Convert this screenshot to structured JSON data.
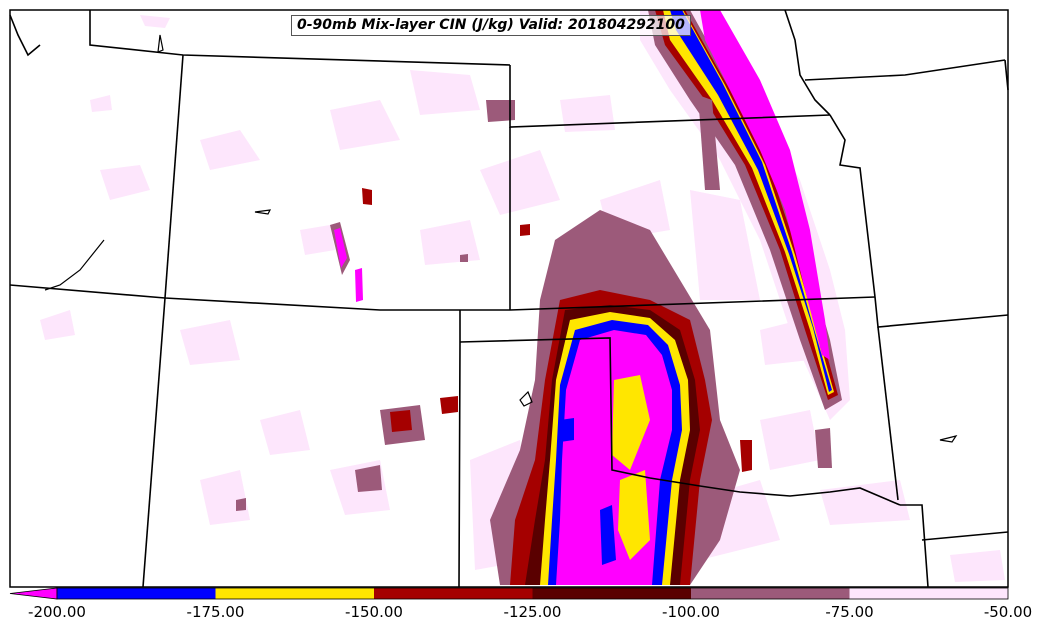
{
  "title": "0-90mb Mix-layer CIN (J/kg) Valid: 201804292100",
  "colorbar": {
    "ticks": [
      "-200.00",
      "-175.00",
      "-150.00",
      "-125.00",
      "-100.00",
      "-75.00",
      "-50.00"
    ],
    "bins": [
      {
        "from": -200,
        "to": -175,
        "color": "#0000ff"
      },
      {
        "from": -175,
        "to": -150,
        "color": "#ffe600"
      },
      {
        "from": -150,
        "to": -125,
        "color": "#a50000"
      },
      {
        "from": -125,
        "to": -100,
        "color": "#5a0000"
      },
      {
        "from": -100,
        "to": -75,
        "color": "#9c5a7a"
      },
      {
        "from": -75,
        "to": -50,
        "color": "#fde6fc"
      }
    ],
    "under_color": "#ff00ff",
    "extend": "min"
  },
  "colors": {
    "extreme_low": "#ff00ff",
    "very_low": "#0000ff",
    "low": "#ffe600",
    "mid_low": "#a50000",
    "mid": "#5a0000",
    "mid_high": "#9c5a7a",
    "high": "#fde6fc",
    "border": "#000000"
  }
}
